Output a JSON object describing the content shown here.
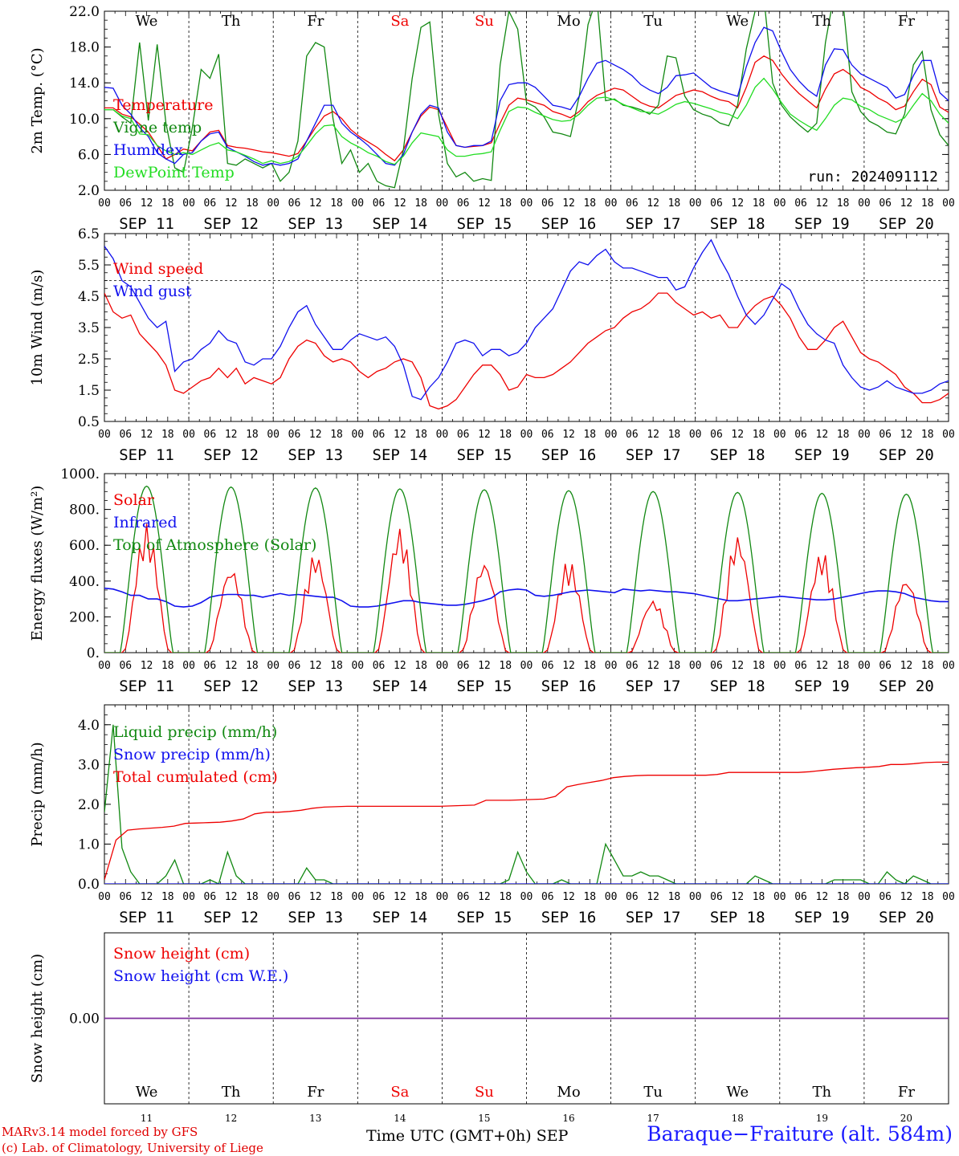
{
  "colors": {
    "red": "#ee0000",
    "blue": "#1010ee",
    "green": "#118811",
    "lightgreen": "#22dd22",
    "purple": "#7f2f9f"
  },
  "chart_data": [
    {
      "type": "line",
      "id": "temp",
      "ylabel": "2m Temp. (°C)",
      "yticks": [
        "22.0",
        "18.0",
        "14.0",
        "10.0",
        "6.0",
        "2.0"
      ],
      "ylim": [
        2,
        22
      ],
      "ref_line": null,
      "annotation": "run: 2024091112",
      "series": [
        {
          "name": "Temperature",
          "color": "red",
          "values": [
            11.2,
            11.2,
            10.5,
            10.2,
            9.4,
            8.5,
            7.0,
            5.5,
            6.0,
            6.6,
            6.4,
            7.5,
            8.5,
            8.7,
            7.0,
            6.8,
            6.7,
            6.5,
            6.3,
            6.2,
            6.0,
            5.8,
            6.1,
            7.5,
            9.0,
            10.3,
            10.8,
            10.0,
            8.8,
            8.0,
            7.4,
            6.8,
            6.0,
            5.3,
            6.5,
            8.5,
            10.3,
            11.3,
            11.0,
            9.0,
            7.0,
            6.8,
            6.9,
            7.0,
            7.3,
            9.5,
            11.5,
            12.3,
            12.1,
            11.8,
            11.5,
            10.8,
            10.5,
            10.1,
            10.8,
            11.9,
            12.6,
            13.0,
            13.4,
            13.2,
            12.5,
            11.8,
            11.4,
            11.2,
            11.9,
            12.6,
            12.9,
            13.2,
            13.0,
            12.5,
            12.1,
            11.9,
            11.2,
            13.5,
            16.3,
            17.0,
            16.5,
            15.0,
            13.8,
            12.8,
            12.0,
            11.2,
            13.3,
            15.0,
            15.5,
            14.8,
            13.5,
            13.0,
            12.3,
            11.8,
            11.0,
            11.4,
            13.0,
            14.4,
            13.8,
            11.3,
            10.7
          ]
        },
        {
          "name": "Vigne temp",
          "color": "green",
          "values": [
            11.0,
            11.0,
            10.2,
            9.5,
            18.5,
            9.8,
            18.3,
            9.5,
            4.5,
            4.0,
            9.0,
            15.5,
            14.5,
            17.2,
            5.0,
            4.8,
            5.5,
            5.0,
            4.5,
            5.0,
            3.0,
            4.0,
            7.5,
            17.0,
            18.5,
            18.0,
            10.0,
            5.0,
            6.5,
            4.0,
            5.0,
            3.0,
            2.5,
            2.3,
            6.5,
            14.5,
            20.2,
            20.8,
            10.5,
            5.0,
            3.5,
            4.0,
            3.0,
            3.3,
            3.1,
            16.0,
            22.0,
            20.0,
            11.8,
            11.3,
            10.2,
            8.5,
            8.3,
            8.0,
            12.5,
            20.5,
            23.5,
            12.0,
            12.2,
            11.5,
            11.3,
            11.0,
            10.5,
            11.5,
            17.0,
            16.8,
            12.5,
            11.0,
            10.5,
            10.2,
            9.5,
            9.2,
            11.5,
            17.8,
            22.0,
            23.5,
            14.0,
            11.5,
            10.2,
            9.3,
            8.5,
            9.5,
            18.5,
            24.0,
            23.0,
            13.0,
            10.8,
            9.7,
            9.2,
            8.5,
            8.3,
            10.5,
            16.0,
            17.5,
            11.0,
            8.2,
            7.0
          ]
        },
        {
          "name": "Humidex",
          "color": "blue",
          "values": [
            13.5,
            13.4,
            11.5,
            10.5,
            9.0,
            8.0,
            6.2,
            5.5,
            5.0,
            6.0,
            6.2,
            7.5,
            8.3,
            8.5,
            6.8,
            6.3,
            5.8,
            5.2,
            4.8,
            5.0,
            4.8,
            5.0,
            5.5,
            7.5,
            9.5,
            11.5,
            11.5,
            9.5,
            8.5,
            7.8,
            7.0,
            6.0,
            5.0,
            4.8,
            6.0,
            8.5,
            10.5,
            11.5,
            11.2,
            8.5,
            7.0,
            6.8,
            7.0,
            7.0,
            7.5,
            12.0,
            13.8,
            14.0,
            14.0,
            13.5,
            12.5,
            11.5,
            11.3,
            11.0,
            12.5,
            14.5,
            16.2,
            16.5,
            16.0,
            15.5,
            14.8,
            13.8,
            13.2,
            12.8,
            13.5,
            14.8,
            14.9,
            15.1,
            14.3,
            13.5,
            13.1,
            12.8,
            12.5,
            15.8,
            18.5,
            20.2,
            19.8,
            17.5,
            15.5,
            14.2,
            13.2,
            12.5,
            16.0,
            17.8,
            17.7,
            16.0,
            15.0,
            14.5,
            14.0,
            13.5,
            12.3,
            12.7,
            14.8,
            16.5,
            16.5,
            12.9,
            12.0
          ]
        },
        {
          "name": "DewPoint Temp",
          "color": "lightgreen",
          "values": [
            11.0,
            11.0,
            10.3,
            10.0,
            8.3,
            8.2,
            7.0,
            6.4,
            6.0,
            6.2,
            6.0,
            6.5,
            7.0,
            7.3,
            6.5,
            6.3,
            5.9,
            5.5,
            5.0,
            5.3,
            5.0,
            5.2,
            5.8,
            7.0,
            8.3,
            9.2,
            9.3,
            8.0,
            7.3,
            6.8,
            6.2,
            5.8,
            5.2,
            4.9,
            5.8,
            7.3,
            8.4,
            8.2,
            8.0,
            6.5,
            5.8,
            5.8,
            6.0,
            6.1,
            6.3,
            8.7,
            10.8,
            11.3,
            11.2,
            10.7,
            10.3,
            9.9,
            9.7,
            9.8,
            10.5,
            11.5,
            12.3,
            12.4,
            12.1,
            11.6,
            11.2,
            10.8,
            10.7,
            10.5,
            11.0,
            11.6,
            11.9,
            11.7,
            11.4,
            11.1,
            10.7,
            10.5,
            10.0,
            11.5,
            13.5,
            14.5,
            13.3,
            11.8,
            10.5,
            9.8,
            9.2,
            8.7,
            10.0,
            11.5,
            12.3,
            12.1,
            11.4,
            11.0,
            10.4,
            10.0,
            9.6,
            10.1,
            11.5,
            12.8,
            12.0,
            10.5,
            9.5
          ]
        }
      ]
    },
    {
      "type": "line",
      "id": "wind",
      "ylabel": "10m Wind (m/s)",
      "yticks": [
        "6.5",
        "5.5",
        "4.5",
        "3.5",
        "2.5",
        "1.5",
        "0.5"
      ],
      "ylim": [
        0.5,
        6.5
      ],
      "ref_line": 5.0,
      "series": [
        {
          "name": "Wind speed",
          "color": "red",
          "values": [
            4.6,
            4.0,
            3.8,
            3.9,
            3.3,
            3.0,
            2.7,
            2.3,
            1.5,
            1.4,
            1.6,
            1.8,
            1.9,
            2.2,
            1.9,
            2.2,
            1.7,
            1.9,
            1.8,
            1.7,
            1.9,
            2.5,
            2.9,
            3.1,
            3.0,
            2.6,
            2.4,
            2.5,
            2.4,
            2.1,
            1.9,
            2.1,
            2.2,
            2.4,
            2.5,
            2.4,
            1.9,
            1.0,
            0.9,
            1.0,
            1.2,
            1.6,
            2.0,
            2.3,
            2.3,
            2.0,
            1.5,
            1.6,
            2.0,
            1.9,
            1.9,
            2.0,
            2.2,
            2.4,
            2.7,
            3.0,
            3.2,
            3.4,
            3.5,
            3.8,
            4.0,
            4.1,
            4.3,
            4.6,
            4.6,
            4.3,
            4.1,
            3.9,
            4.0,
            3.8,
            3.9,
            3.5,
            3.5,
            3.9,
            4.2,
            4.4,
            4.5,
            4.2,
            3.8,
            3.2,
            2.8,
            2.8,
            3.1,
            3.5,
            3.7,
            3.2,
            2.7,
            2.5,
            2.4,
            2.2,
            2.0,
            1.6,
            1.4,
            1.1,
            1.1,
            1.2,
            1.4
          ]
        },
        {
          "name": "Wind gust",
          "color": "blue",
          "values": [
            6.1,
            5.7,
            5.0,
            4.8,
            4.3,
            3.8,
            3.5,
            3.7,
            2.1,
            2.4,
            2.5,
            2.8,
            3.0,
            3.4,
            3.1,
            3.0,
            2.4,
            2.3,
            2.5,
            2.5,
            2.9,
            3.5,
            4.0,
            4.2,
            3.6,
            3.2,
            2.8,
            2.8,
            3.1,
            3.3,
            3.2,
            3.1,
            3.2,
            2.9,
            2.3,
            1.3,
            1.2,
            1.6,
            1.9,
            2.4,
            3.0,
            3.1,
            3.0,
            2.6,
            2.8,
            2.8,
            2.6,
            2.7,
            3.0,
            3.5,
            3.8,
            4.1,
            4.7,
            5.3,
            5.6,
            5.5,
            5.8,
            6.0,
            5.6,
            5.4,
            5.4,
            5.3,
            5.2,
            5.1,
            5.1,
            4.7,
            4.8,
            5.4,
            5.9,
            6.3,
            5.7,
            5.2,
            4.5,
            3.9,
            3.6,
            3.9,
            4.4,
            4.9,
            4.7,
            4.1,
            3.6,
            3.3,
            3.1,
            3.0,
            2.3,
            1.9,
            1.6,
            1.5,
            1.6,
            1.8,
            1.6,
            1.5,
            1.4,
            1.4,
            1.5,
            1.7,
            1.8
          ]
        }
      ]
    },
    {
      "type": "line",
      "id": "energy",
      "ylabel": "Energy fluxes (W/m²)",
      "yticks": [
        "1000.",
        "800.",
        "600.",
        "400.",
        "200.",
        "0."
      ],
      "ylim": [
        0,
        1000
      ],
      "ref_line": null,
      "series": [
        {
          "name": "Solar",
          "color": "red",
          "peaks": [
            720,
            480,
            560,
            700,
            520,
            520,
            300,
            660,
            570,
            420
          ]
        },
        {
          "name": "Infrared",
          "color": "blue",
          "values": [
            360,
            355,
            340,
            320,
            320,
            300,
            300,
            285,
            260,
            255,
            260,
            280,
            310,
            320,
            325,
            325,
            320,
            320,
            310,
            320,
            330,
            320,
            325,
            320,
            315,
            310,
            310,
            290,
            260,
            255,
            255,
            260,
            270,
            280,
            290,
            290,
            280,
            275,
            270,
            265,
            265,
            270,
            280,
            290,
            305,
            340,
            350,
            355,
            350,
            320,
            315,
            320,
            330,
            340,
            345,
            350,
            345,
            340,
            335,
            355,
            350,
            345,
            350,
            345,
            340,
            340,
            335,
            330,
            320,
            310,
            300,
            290,
            290,
            295,
            300,
            305,
            310,
            315,
            310,
            305,
            300,
            295,
            295,
            300,
            310,
            320,
            330,
            340,
            345,
            345,
            340,
            330,
            310,
            300,
            290,
            285,
            285
          ]
        },
        {
          "name": "Top of Atmosphere (Solar)",
          "color": "green",
          "peaks": [
            930,
            925,
            920,
            915,
            910,
            905,
            900,
            895,
            890,
            885
          ]
        }
      ]
    },
    {
      "type": "line",
      "id": "precip",
      "ylabel": "Precip (mm/h)",
      "yticks": [
        "4.0",
        "3.0",
        "2.0",
        "1.0",
        "0.0"
      ],
      "ylim": [
        0,
        4.5
      ],
      "ref_line": null,
      "series": [
        {
          "name": "Liquid precip (mm/h)",
          "color": "green",
          "values": [
            1.8,
            4.0,
            0.9,
            0.3,
            0.0,
            0.0,
            0.0,
            0.2,
            0.6,
            0.0,
            0.0,
            0.0,
            0.1,
            0.0,
            0.8,
            0.2,
            0.0,
            0.0,
            0.0,
            0.0,
            0.0,
            0.0,
            0.0,
            0.4,
            0.1,
            0.1,
            0.0,
            0.0,
            0.0,
            0.0,
            0.0,
            0.0,
            0.0,
            0.0,
            0.0,
            0.0,
            0.0,
            0.0,
            0.0,
            0.0,
            0.0,
            0.0,
            0.0,
            0.0,
            0.0,
            0.0,
            0.1,
            0.8,
            0.3,
            0.0,
            0.0,
            0.0,
            0.1,
            0.0,
            0.0,
            0.0,
            0.0,
            1.0,
            0.6,
            0.2,
            0.2,
            0.3,
            0.2,
            0.2,
            0.1,
            0.0,
            0.0,
            0.0,
            0.0,
            0.0,
            0.0,
            0.0,
            0.0,
            0.0,
            0.2,
            0.1,
            0.0,
            0.0,
            0.0,
            0.0,
            0.0,
            0.0,
            0.0,
            0.1,
            0.1,
            0.1,
            0.1,
            0.0,
            0.0,
            0.3,
            0.1,
            0.0,
            0.2,
            0.1,
            0.0,
            0.0,
            0.0
          ]
        },
        {
          "name": "Snow precip (mm/h)",
          "color": "blue",
          "values": [
            0
          ]
        },
        {
          "name": "Total cumulated (cm)",
          "color": "red",
          "values": [
            0.1,
            1.1,
            1.35,
            1.38,
            1.4,
            1.42,
            1.45,
            1.52,
            1.53,
            1.54,
            1.55,
            1.58,
            1.63,
            1.76,
            1.8,
            1.8,
            1.82,
            1.85,
            1.9,
            1.93,
            1.94,
            1.95,
            1.95,
            1.95,
            1.95,
            1.95,
            1.95,
            1.95,
            1.95,
            1.95,
            1.96,
            1.97,
            1.98,
            2.1,
            2.1,
            2.1,
            2.11,
            2.12,
            2.13,
            2.2,
            2.44,
            2.5,
            2.55,
            2.6,
            2.67,
            2.7,
            2.72,
            2.73,
            2.73,
            2.73,
            2.73,
            2.73,
            2.73,
            2.75,
            2.8,
            2.8,
            2.8,
            2.8,
            2.8,
            2.8,
            2.8,
            2.82,
            2.85,
            2.88,
            2.9,
            2.92,
            2.93,
            2.95,
            3.0,
            3.0,
            3.02,
            3.05,
            3.06,
            3.06
          ]
        }
      ]
    },
    {
      "type": "line",
      "id": "snow",
      "ylabel": "Snow height (cm)",
      "yticks": [
        "0.00"
      ],
      "ylim": [
        -1,
        1
      ],
      "ref_line": null,
      "series": [
        {
          "name": "Snow height (cm)",
          "color": "red",
          "values": [
            0
          ]
        },
        {
          "name": "Snow height (cm W.E.)",
          "color": "blue",
          "values": [
            0
          ]
        }
      ]
    }
  ],
  "days_top": [
    {
      "label": "We",
      "color": "black"
    },
    {
      "label": "Th",
      "color": "black"
    },
    {
      "label": "Fr",
      "color": "black"
    },
    {
      "label": "Sa",
      "color": "red"
    },
    {
      "label": "Su",
      "color": "red"
    },
    {
      "label": "Mo",
      "color": "black"
    },
    {
      "label": "Tu",
      "color": "black"
    },
    {
      "label": "We",
      "color": "black"
    },
    {
      "label": "Th",
      "color": "black"
    },
    {
      "label": "Fr",
      "color": "black"
    }
  ],
  "date_labels": [
    "SEP 11",
    "SEP 12",
    "SEP 13",
    "SEP 14",
    "SEP 15",
    "SEP 16",
    "SEP 17",
    "SEP 18",
    "SEP 19",
    "SEP 20"
  ],
  "hour_labels": [
    "00",
    "06",
    "12",
    "18"
  ],
  "day_numbers": [
    "11",
    "12",
    "13",
    "14",
    "15",
    "16",
    "17",
    "18",
    "19",
    "20"
  ],
  "footer": {
    "credit1": "MARv3.14 model forced by GFS",
    "credit2": "(c) Lab. of Climatology, University of Liege",
    "axis_title": "Time UTC (GMT+0h)",
    "month": "SEP",
    "station": "Baraque−Fraiture (alt. 584m)"
  }
}
